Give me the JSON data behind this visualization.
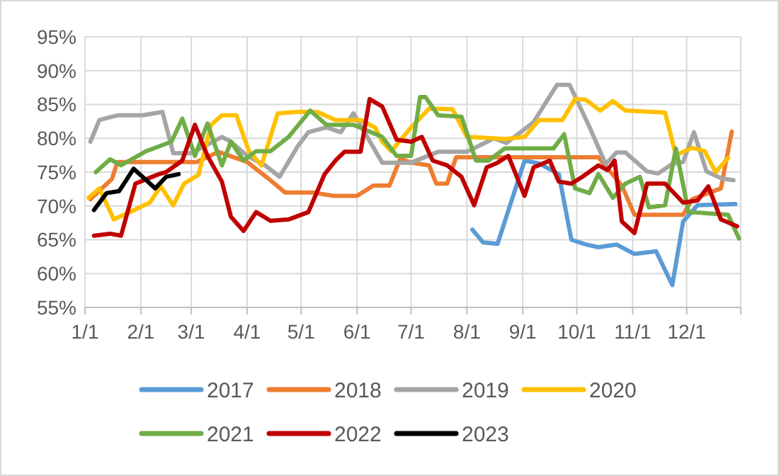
{
  "chart_data": {
    "type": "line",
    "xlim": [
      "--01-01",
      "--12-31"
    ],
    "xticks": [
      {
        "value": "--01-01",
        "label": "1/1"
      },
      {
        "value": "--02-01",
        "label": "2/1"
      },
      {
        "value": "--03-01",
        "label": "3/1"
      },
      {
        "value": "--04-01",
        "label": "4/1"
      },
      {
        "value": "--05-01",
        "label": "5/1"
      },
      {
        "value": "--06-01",
        "label": "6/1"
      },
      {
        "value": "--07-01",
        "label": "7/1"
      },
      {
        "value": "--08-01",
        "label": "8/1"
      },
      {
        "value": "--09-01",
        "label": "9/1"
      },
      {
        "value": "--10-01",
        "label": "10/1"
      },
      {
        "value": "--11-01",
        "label": "11/1"
      },
      {
        "value": "--12-01",
        "label": "12/1"
      },
      {
        "value": "--12-31",
        "label": null
      }
    ],
    "ylim": [
      55,
      95
    ],
    "yticks": [
      {
        "value": 55,
        "label": "55%"
      },
      {
        "value": 60,
        "label": "60%"
      },
      {
        "value": 65,
        "label": "65%"
      },
      {
        "value": 70,
        "label": "70%"
      },
      {
        "value": 75,
        "label": "75%"
      },
      {
        "value": 80,
        "label": "80%"
      },
      {
        "value": 85,
        "label": "85%"
      },
      {
        "value": 90,
        "label": "90%"
      },
      {
        "value": 95,
        "label": "95%"
      }
    ],
    "grid": true,
    "legend": "bottom",
    "marker": "none",
    "line_style": "solid",
    "series": [
      {
        "name": "2017",
        "color": "#5b9bd5",
        "x": [
          "--08-04",
          "--08-10",
          "--08-18",
          "--09-02",
          "--09-10",
          "--09-21",
          "--09-28",
          "--10-06",
          "--10-13",
          "--10-23",
          "--11-02",
          "--11-14",
          "--11-23",
          "--11-29",
          "--12-07",
          "--12-28"
        ],
        "values": [
          66.5,
          64.6,
          64.4,
          76.7,
          76.3,
          74.7,
          65,
          64.3,
          63.9,
          64.3,
          62.9,
          63.3,
          58.3,
          67.7,
          70.1,
          70.3
        ]
      },
      {
        "name": "2018",
        "color": "#ed7d31",
        "x": [
          "--01-04",
          "--01-16",
          "--01-19",
          "--02-01",
          "--03-04",
          "--03-16",
          "--04-01",
          "--04-13",
          "--04-22",
          "--05-07",
          "--05-19",
          "--06-01",
          "--06-10",
          "--06-19",
          "--06-25",
          "--07-01",
          "--07-11",
          "--07-15",
          "--07-21",
          "--07-26",
          "--08-06",
          "--10-13",
          "--10-26",
          "--11-02",
          "--11-19",
          "--11-29",
          "--12-04",
          "--12-20",
          "--12-26"
        ],
        "values": [
          71,
          74,
          76.5,
          76.5,
          76.5,
          78,
          76.5,
          74,
          72,
          72,
          71.5,
          71.5,
          73,
          73,
          77,
          76.4,
          76,
          73.3,
          73.3,
          77.2,
          77.2,
          77.2,
          73,
          68.7,
          68.7,
          68.7,
          71,
          72.6,
          81
        ]
      },
      {
        "name": "2019",
        "color": "#a5a5a5",
        "x": [
          "--01-04",
          "--01-09",
          "--01-19",
          "--02-02",
          "--02-13",
          "--02-19",
          "--03-01",
          "--03-18",
          "--03-23",
          "--04-01",
          "--04-11",
          "--04-19",
          "--04-29",
          "--05-05",
          "--05-15",
          "--05-23",
          "--05-30",
          "--06-15",
          "--07-01",
          "--07-16",
          "--08-01",
          "--08-16",
          "--08-23",
          "--09-07",
          "--09-20",
          "--09-27",
          "--10-08",
          "--10-17",
          "--10-23",
          "--10-28",
          "--11-09",
          "--11-15",
          "--11-23",
          "--11-29",
          "--12-05",
          "--12-12",
          "--12-20",
          "--12-27"
        ],
        "values": [
          79.5,
          82.7,
          83.4,
          83.4,
          83.9,
          77.8,
          77.8,
          80.2,
          79.5,
          77.4,
          76,
          74.3,
          78.8,
          80.9,
          81.6,
          80.9,
          83.7,
          76.4,
          76.4,
          78,
          78,
          80,
          79.3,
          82.4,
          87.9,
          87.9,
          81.7,
          76.2,
          77.9,
          77.9,
          75.1,
          74.8,
          76.2,
          76.5,
          80.9,
          75.1,
          74.1,
          73.8
        ]
      },
      {
        "name": "2020",
        "color": "#ffc000",
        "x": [
          "--01-03",
          "--01-09",
          "--01-17",
          "--01-26",
          "--02-06",
          "--02-12",
          "--02-19",
          "--02-25",
          "--03-05",
          "--03-12",
          "--03-18",
          "--03-26",
          "--04-02",
          "--04-09",
          "--04-18",
          "--04-29",
          "--05-10",
          "--05-20",
          "--06-03",
          "--06-11",
          "--06-15",
          "--06-20",
          "--06-30",
          "--07-11",
          "--07-24",
          "--08-01",
          "--08-09",
          "--08-22",
          "--09-02",
          "--09-10",
          "--09-23",
          "--09-30",
          "--10-06",
          "--10-14",
          "--10-21",
          "--10-28",
          "--11-19",
          "--11-25",
          "--12-04",
          "--12-11",
          "--12-17",
          "--12-24"
        ],
        "values": [
          71.2,
          72.6,
          68,
          69.1,
          70.5,
          72.9,
          70.1,
          73.3,
          74.6,
          82,
          83.4,
          83.4,
          78.1,
          76,
          83.7,
          83.9,
          83.9,
          82.7,
          82.7,
          81.6,
          79.5,
          78.1,
          81.3,
          84.4,
          84.3,
          80.2,
          80.1,
          79.9,
          80.2,
          82.7,
          82.7,
          85.8,
          85.7,
          84.1,
          85.5,
          84.1,
          83.8,
          77.5,
          78.6,
          78.1,
          75,
          77.1
        ]
      },
      {
        "name": "2021",
        "color": "#70ad47",
        "x": [
          "--01-07",
          "--01-15",
          "--01-21",
          "--02-04",
          "--02-11",
          "--02-18",
          "--02-24",
          "--03-03",
          "--03-10",
          "--03-18",
          "--03-23",
          "--03-30",
          "--04-06",
          "--04-14",
          "--04-24",
          "--05-06",
          "--05-15",
          "--05-30",
          "--06-15",
          "--06-23",
          "--07-01",
          "--07-06",
          "--07-09",
          "--07-16",
          "--07-29",
          "--08-06",
          "--08-13",
          "--08-22",
          "--09-18",
          "--09-24",
          "--09-30",
          "--10-08",
          "--10-13",
          "--10-21",
          "--10-28",
          "--11-05",
          "--11-10",
          "--11-19",
          "--11-25",
          "--12-02",
          "--12-24",
          "--12-30"
        ],
        "values": [
          75,
          76.9,
          76,
          78.1,
          78.8,
          79.5,
          82.9,
          77.4,
          82.2,
          76,
          79.5,
          76.7,
          78.1,
          78.1,
          80.2,
          84.1,
          82,
          82,
          80.2,
          77.4,
          77.4,
          86.1,
          86.1,
          83.4,
          83.2,
          76.7,
          76.7,
          78.5,
          78.5,
          80.6,
          72.6,
          71.9,
          74.7,
          71.2,
          73.3,
          74.3,
          69.8,
          70.1,
          78.5,
          69.1,
          68.7,
          65.2
        ]
      },
      {
        "name": "2022",
        "color": "#c00000",
        "x": [
          "--01-06",
          "--01-15",
          "--01-21",
          "--01-29",
          "--02-11",
          "--02-15",
          "--02-24",
          "--03-03",
          "--03-10",
          "--03-18",
          "--03-23",
          "--03-30",
          "--04-06",
          "--04-14",
          "--04-24",
          "--05-05",
          "--05-14",
          "--05-20",
          "--05-25",
          "--06-03",
          "--06-08",
          "--06-15",
          "--06-23",
          "--07-01",
          "--07-07",
          "--07-13",
          "--07-21",
          "--07-29",
          "--08-05",
          "--08-12",
          "--08-18",
          "--08-24",
          "--09-02",
          "--09-07",
          "--09-16",
          "--09-21",
          "--09-28",
          "--10-04",
          "--10-13",
          "--10-18",
          "--10-22",
          "--10-26",
          "--11-02",
          "--11-09",
          "--11-19",
          "--11-29",
          "--12-07",
          "--12-13",
          "--12-20",
          "--12-29"
        ],
        "values": [
          65.6,
          65.9,
          65.6,
          73.3,
          74.7,
          75,
          76.7,
          82,
          77.4,
          73.6,
          68.4,
          66.3,
          69.1,
          67.8,
          68,
          69.1,
          74.7,
          76.7,
          78,
          78,
          85.8,
          84.7,
          79.8,
          79.5,
          80.2,
          76.7,
          76,
          74.3,
          70.1,
          75.7,
          76.4,
          77.4,
          71.5,
          75.7,
          76.7,
          73.6,
          73.3,
          74.3,
          76,
          75.3,
          76.7,
          67.7,
          66,
          73.3,
          73.3,
          70.5,
          70.8,
          72.9,
          68,
          67
        ]
      },
      {
        "name": "2023",
        "color": "#000000",
        "x": [
          "--01-06",
          "--01-13",
          "--01-20",
          "--01-28",
          "--02-02",
          "--02-09",
          "--02-15",
          "--02-22"
        ],
        "values": [
          69.4,
          71.9,
          72.2,
          75.5,
          74.3,
          72.6,
          74.3,
          74.7
        ]
      }
    ]
  }
}
